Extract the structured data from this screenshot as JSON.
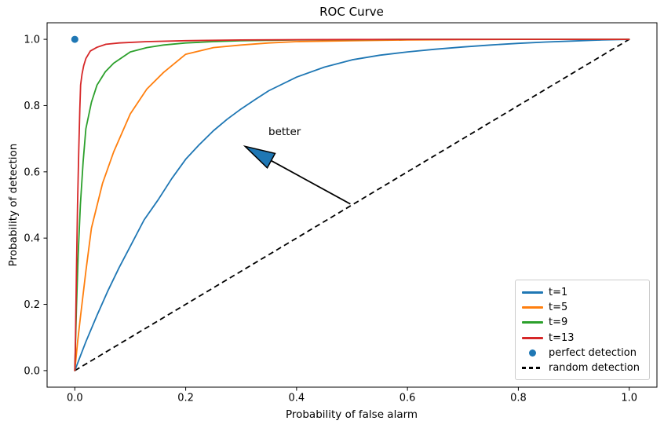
{
  "figure": {
    "title": "ROC Curve"
  },
  "axes": {
    "xlabel": "Probability of false alarm",
    "ylabel": "Probability of detection"
  },
  "annotation": {
    "text": "better"
  },
  "legend": {
    "position": "lower right",
    "items": [
      {
        "label": "t=1",
        "swatch": "line",
        "color": "#1f77b4"
      },
      {
        "label": "t=5",
        "swatch": "line",
        "color": "#ff7f0e"
      },
      {
        "label": "t=9",
        "swatch": "line",
        "color": "#2ca02c"
      },
      {
        "label": "t=13",
        "swatch": "line",
        "color": "#d62728"
      },
      {
        "label": "perfect detection",
        "swatch": "dot",
        "color": "#1f77b4"
      },
      {
        "label": "random detection",
        "swatch": "dashed",
        "color": "#000000"
      }
    ]
  },
  "chart_data": {
    "type": "line",
    "title": "ROC Curve",
    "xlabel": "Probability of false alarm",
    "ylabel": "Probability of detection",
    "xlim": [
      -0.05,
      1.05
    ],
    "ylim": [
      -0.05,
      1.05
    ],
    "grid": false,
    "legend_position": "lower right",
    "xticks": {
      "values": [
        0.0,
        0.2,
        0.4,
        0.6,
        0.8,
        1.0
      ],
      "labels": [
        "0.0",
        "0.2",
        "0.4",
        "0.6",
        "0.8",
        "1.0"
      ]
    },
    "yticks": {
      "values": [
        0.0,
        0.2,
        0.4,
        0.6,
        0.8,
        1.0
      ],
      "labels": [
        "0.0",
        "0.2",
        "0.4",
        "0.6",
        "0.8",
        "1.0"
      ]
    },
    "series": [
      {
        "name": "t=1",
        "color": "#1f77b4",
        "points": [
          [
            0,
            0
          ],
          [
            0.01,
            0.044
          ],
          [
            0.02,
            0.087
          ],
          [
            0.04,
            0.167
          ],
          [
            0.06,
            0.242
          ],
          [
            0.08,
            0.311
          ],
          [
            0.1,
            0.375
          ],
          [
            0.125,
            0.455
          ],
          [
            0.15,
            0.515
          ],
          [
            0.175,
            0.58
          ],
          [
            0.2,
            0.638
          ],
          [
            0.225,
            0.683
          ],
          [
            0.25,
            0.724
          ],
          [
            0.275,
            0.759
          ],
          [
            0.3,
            0.79
          ],
          [
            0.325,
            0.818
          ],
          [
            0.35,
            0.845
          ],
          [
            0.4,
            0.886
          ],
          [
            0.45,
            0.916
          ],
          [
            0.5,
            0.938
          ],
          [
            0.55,
            0.952
          ],
          [
            0.6,
            0.962
          ],
          [
            0.65,
            0.97
          ],
          [
            0.7,
            0.977
          ],
          [
            0.75,
            0.983
          ],
          [
            0.8,
            0.988
          ],
          [
            0.85,
            0.992
          ],
          [
            0.9,
            0.995
          ],
          [
            0.95,
            0.998
          ],
          [
            1.0,
            1.0
          ]
        ]
      },
      {
        "name": "t=5",
        "color": "#ff7f0e",
        "points": [
          [
            0,
            0
          ],
          [
            0.005,
            0.085
          ],
          [
            0.01,
            0.16
          ],
          [
            0.02,
            0.3
          ],
          [
            0.03,
            0.43
          ],
          [
            0.05,
            0.565
          ],
          [
            0.07,
            0.66
          ],
          [
            0.1,
            0.775
          ],
          [
            0.13,
            0.85
          ],
          [
            0.16,
            0.9
          ],
          [
            0.2,
            0.955
          ],
          [
            0.25,
            0.975
          ],
          [
            0.3,
            0.983
          ],
          [
            0.35,
            0.989
          ],
          [
            0.4,
            0.993
          ],
          [
            0.5,
            0.996
          ],
          [
            0.6,
            0.998
          ],
          [
            0.7,
            0.999
          ],
          [
            0.8,
            1.0
          ],
          [
            0.9,
            1.0
          ],
          [
            1.0,
            1.0
          ]
        ]
      },
      {
        "name": "t=9",
        "color": "#2ca02c",
        "points": [
          [
            0,
            0
          ],
          [
            0.003,
            0.19
          ],
          [
            0.006,
            0.35
          ],
          [
            0.01,
            0.5
          ],
          [
            0.015,
            0.63
          ],
          [
            0.02,
            0.73
          ],
          [
            0.03,
            0.81
          ],
          [
            0.04,
            0.862
          ],
          [
            0.055,
            0.902
          ],
          [
            0.07,
            0.928
          ],
          [
            0.1,
            0.962
          ],
          [
            0.13,
            0.975
          ],
          [
            0.16,
            0.983
          ],
          [
            0.2,
            0.989
          ],
          [
            0.25,
            0.993
          ],
          [
            0.3,
            0.996
          ],
          [
            0.4,
            0.998
          ],
          [
            0.5,
            0.999
          ],
          [
            0.6,
            1.0
          ],
          [
            0.8,
            1.0
          ],
          [
            1.0,
            1.0
          ]
        ]
      },
      {
        "name": "t=13",
        "color": "#d62728",
        "points": [
          [
            0,
            0
          ],
          [
            0.001,
            0.07
          ],
          [
            0.003,
            0.3
          ],
          [
            0.005,
            0.5
          ],
          [
            0.007,
            0.66
          ],
          [
            0.009,
            0.79
          ],
          [
            0.0105,
            0.862
          ],
          [
            0.013,
            0.895
          ],
          [
            0.016,
            0.92
          ],
          [
            0.02,
            0.942
          ],
          [
            0.028,
            0.965
          ],
          [
            0.04,
            0.976
          ],
          [
            0.056,
            0.985
          ],
          [
            0.08,
            0.989
          ],
          [
            0.13,
            0.993
          ],
          [
            0.2,
            0.996
          ],
          [
            0.3,
            0.998
          ],
          [
            0.5,
            0.9995
          ],
          [
            0.7,
            1.0
          ],
          [
            1.0,
            1.0
          ]
        ]
      }
    ],
    "perfect_detection": {
      "label": "perfect detection",
      "point": [
        0,
        1
      ],
      "color": "#1f77b4"
    },
    "random_detection": {
      "label": "random detection",
      "points": [
        [
          0,
          0
        ],
        [
          1,
          1
        ]
      ],
      "style": "dashed",
      "color": "#000000"
    },
    "annotation": {
      "text": "better",
      "arrow_tail": [
        0.497,
        0.503
      ],
      "arrow_tip": [
        0.307,
        0.677
      ],
      "arrow_face_color": "#1f77b4",
      "arrow_edge_color": "#000000"
    }
  }
}
